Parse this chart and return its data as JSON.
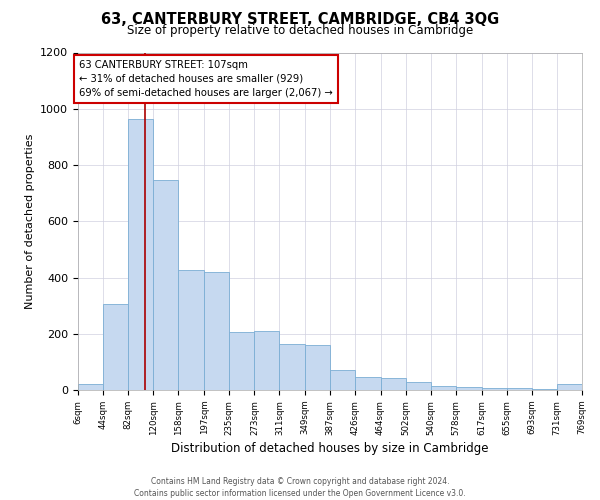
{
  "title": "63, CANTERBURY STREET, CAMBRIDGE, CB4 3QG",
  "subtitle": "Size of property relative to detached houses in Cambridge",
  "xlabel": "Distribution of detached houses by size in Cambridge",
  "ylabel": "Number of detached properties",
  "footer1": "Contains HM Land Registry data © Crown copyright and database right 2024.",
  "footer2": "Contains public sector information licensed under the Open Government Licence v3.0.",
  "bin_edges": [
    6,
    44,
    82,
    120,
    158,
    197,
    235,
    273,
    311,
    349,
    387,
    426,
    464,
    502,
    540,
    578,
    617,
    655,
    693,
    731,
    769
  ],
  "bar_heights": [
    20,
    305,
    965,
    745,
    425,
    420,
    205,
    210,
    163,
    160,
    70,
    45,
    42,
    28,
    13,
    10,
    8,
    6,
    5,
    20,
    0
  ],
  "bar_color": "#c6d9f0",
  "bar_edge_color": "#7aadd4",
  "vline_color": "#aa0000",
  "vline_x": 107,
  "ylim": [
    0,
    1200
  ],
  "yticks": [
    0,
    200,
    400,
    600,
    800,
    1000,
    1200
  ],
  "annotation_line1": "63 CANTERBURY STREET: 107sqm",
  "annotation_line2": "← 31% of detached houses are smaller (929)",
  "annotation_line3": "69% of semi-detached houses are larger (2,067) →",
  "annotation_box_facecolor": "#ffffff",
  "annotation_box_edgecolor": "#cc0000",
  "bg_color": "#ffffff",
  "grid_color": "#d0d0e0"
}
